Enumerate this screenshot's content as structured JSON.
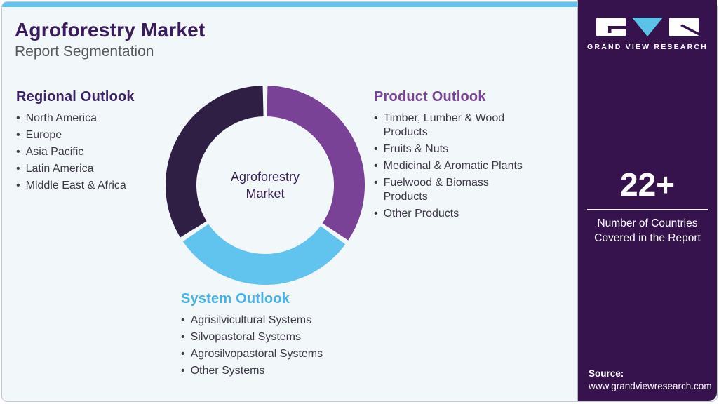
{
  "header": {
    "title": "Agroforestry Market",
    "subtitle": "Report Segmentation"
  },
  "sections": {
    "regional": {
      "heading": "Regional Outlook",
      "items": [
        "North America",
        "Europe",
        "Asia Pacific",
        "Latin America",
        "Middle East & Africa"
      ]
    },
    "product": {
      "heading": "Product Outlook",
      "items": [
        "Timber, Lumber & Wood Products",
        "Fruits & Nuts",
        "Medicinal & Aromatic Plants",
        "Fuelwood & Biomass Products",
        "Other Products"
      ]
    },
    "system": {
      "heading": "System Outlook",
      "items": [
        "Agrisilvicultural Systems",
        "Silvopastoral Systems",
        "Agrosilvopastoral Systems",
        "Other Systems"
      ]
    }
  },
  "chart_data": {
    "type": "donut",
    "title": "Agroforestry Market Report Segmentation",
    "center_label": "Agroforestry Market",
    "legend_position": "around-chart",
    "segments": [
      {
        "label": "Product Outlook",
        "color": "#7a4297",
        "start_angle": 0,
        "end_angle": 125,
        "share_pct": 35
      },
      {
        "label": "System Outlook",
        "color": "#61c4ee",
        "start_angle": 125,
        "end_angle": 237,
        "share_pct": 31
      },
      {
        "label": "Regional Outlook",
        "color": "#2f1f45",
        "start_angle": 237,
        "end_angle": 360,
        "share_pct": 34
      }
    ]
  },
  "sidebar": {
    "brand": "GRAND VIEW RESEARCH",
    "stat_value": "22+",
    "stat_caption": "Number of Countries Covered in the Report",
    "source_label": "Source:",
    "source_url": "www.grandviewresearch.com"
  },
  "icons": {
    "logo": "gvr-logo"
  },
  "colors": {
    "top_accent": "#5fc4f0",
    "card_background": "#f2f7fa",
    "sidebar_background": "#37134e",
    "title_purple": "#3a1b5e",
    "regional_heading": "#3b2366",
    "product_heading": "#7b4397",
    "system_heading": "#47b2e8",
    "body_text": "#3d3846",
    "logo_triangle_blue": "#5bc2e8"
  }
}
